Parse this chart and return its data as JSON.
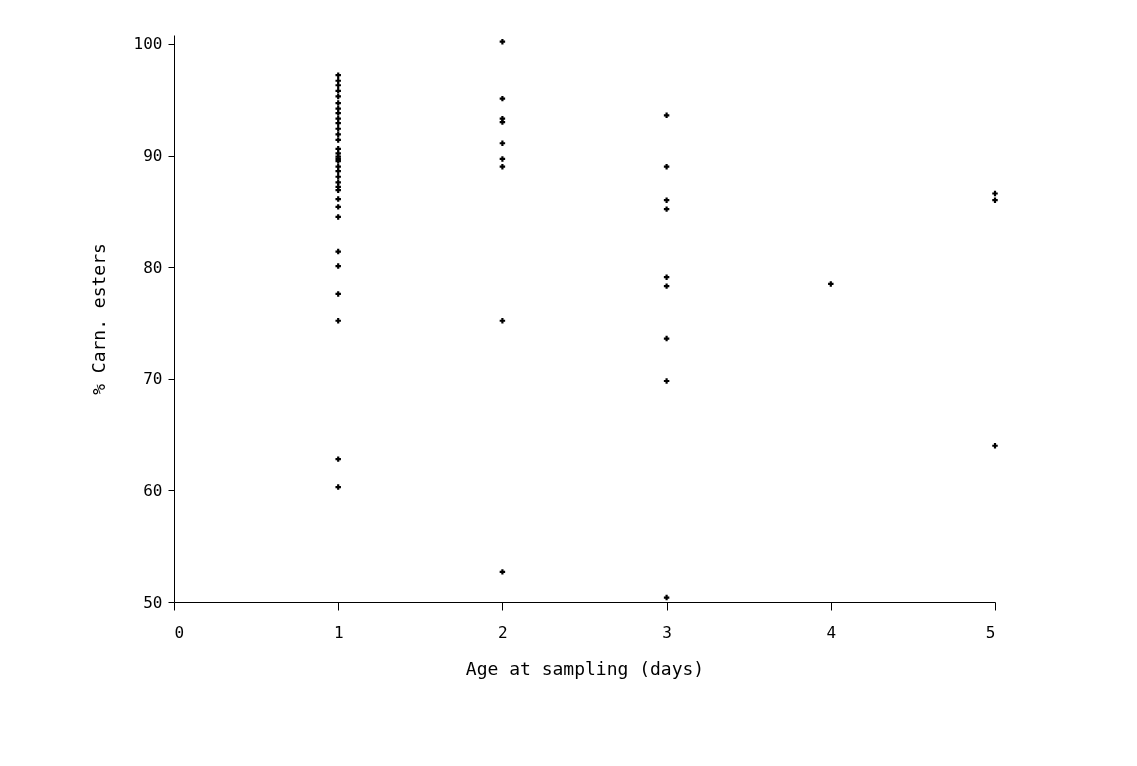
{
  "chart_data": {
    "type": "scatter",
    "xlabel": "Age at sampling (days)",
    "ylabel": "% Carn. esters",
    "x": [
      1,
      1,
      1,
      1,
      1,
      1,
      1,
      1,
      1,
      1,
      1,
      1,
      1,
      1,
      1,
      1,
      1,
      1,
      1,
      1,
      1,
      1,
      1,
      1,
      1,
      1,
      1,
      1,
      1,
      1,
      1,
      1,
      1,
      2,
      2,
      2,
      2,
      2,
      2,
      2,
      2,
      2,
      3,
      3,
      3,
      3,
      3,
      3,
      3,
      3,
      3,
      4,
      5,
      5,
      5
    ],
    "series": [
      {
        "color": "#000000",
        "values": [
          97.2,
          96.7,
          96.3,
          95.8,
          95.3,
          94.7,
          94.2,
          93.8,
          93.3,
          92.9,
          92.4,
          91.9,
          91.4,
          90.6,
          90.2,
          89.9,
          89.7,
          89.5,
          89.0,
          88.6,
          88.1,
          87.6,
          87.2,
          86.9,
          86.1,
          85.4,
          84.5,
          81.4,
          80.1,
          77.6,
          75.2,
          62.8,
          60.3,
          100.2,
          95.1,
          93.3,
          93.0,
          91.1,
          89.7,
          89.0,
          75.2,
          52.7,
          93.6,
          89.0,
          86.0,
          85.2,
          79.1,
          78.3,
          73.6,
          69.8,
          50.4,
          78.5,
          86.6,
          86.0,
          64.0
        ]
      }
    ],
    "xlim": [
      0,
      5
    ],
    "xticks": [
      0,
      1,
      2,
      3,
      4,
      5
    ],
    "ylim": [
      50,
      100.8
    ],
    "yticks": [
      50,
      60,
      70,
      80,
      90,
      100
    ],
    "marker": "cross",
    "grid": false
  }
}
